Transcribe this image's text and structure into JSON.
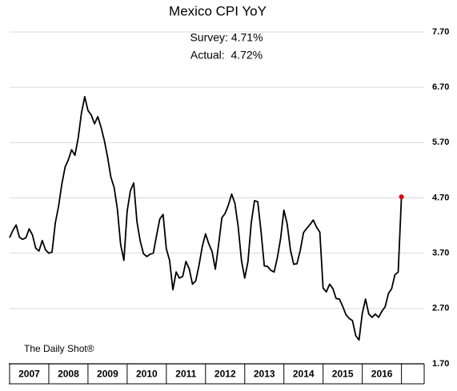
{
  "chart_data": {
    "type": "line",
    "title": "Mexico CPI YoY",
    "annotations": [
      "Survey: 4.71%",
      "Actual:  4.72%"
    ],
    "source": "The Daily Shot®",
    "color": "#000000",
    "marker_color": "#e00000",
    "grid": true,
    "ylim": [
      1.7,
      7.7
    ],
    "yticks": [
      {
        "value": 1.7,
        "label": "1.70"
      },
      {
        "value": 2.7,
        "label": "2.70"
      },
      {
        "value": 3.7,
        "label": "3.70"
      },
      {
        "value": 4.7,
        "label": "4.70"
      },
      {
        "value": 5.7,
        "label": "5.70"
      },
      {
        "value": 6.7,
        "label": "6.70"
      },
      {
        "value": 7.7,
        "label": "7.70"
      }
    ],
    "xlim": [
      2007,
      2017.58
    ],
    "xticks": [
      2007,
      2008,
      2009,
      2010,
      2011,
      2012,
      2013,
      2014,
      2015,
      2016,
      2017
    ],
    "categories": [
      "2007",
      "2008",
      "2009",
      "2010",
      "2011",
      "2012",
      "2013",
      "2014",
      "2015",
      "2016"
    ],
    "x": [
      2007,
      2007.083,
      2007.167,
      2007.25,
      2007.333,
      2007.417,
      2007.5,
      2007.583,
      2007.667,
      2007.75,
      2007.833,
      2007.917,
      2008,
      2008.083,
      2008.167,
      2008.25,
      2008.333,
      2008.417,
      2008.5,
      2008.583,
      2008.667,
      2008.75,
      2008.833,
      2008.917,
      2009,
      2009.083,
      2009.167,
      2009.25,
      2009.333,
      2009.417,
      2009.5,
      2009.583,
      2009.667,
      2009.75,
      2009.833,
      2009.917,
      2010,
      2010.083,
      2010.167,
      2010.25,
      2010.333,
      2010.417,
      2010.5,
      2010.583,
      2010.667,
      2010.75,
      2010.833,
      2010.917,
      2011,
      2011.083,
      2011.167,
      2011.25,
      2011.333,
      2011.417,
      2011.5,
      2011.583,
      2011.667,
      2011.75,
      2011.833,
      2011.917,
      2012,
      2012.083,
      2012.167,
      2012.25,
      2012.333,
      2012.417,
      2012.5,
      2012.583,
      2012.667,
      2012.75,
      2012.833,
      2012.917,
      2013,
      2013.083,
      2013.167,
      2013.25,
      2013.333,
      2013.417,
      2013.5,
      2013.583,
      2013.667,
      2013.75,
      2013.833,
      2013.917,
      2014,
      2014.083,
      2014.167,
      2014.25,
      2014.333,
      2014.417,
      2014.5,
      2014.583,
      2014.667,
      2014.75,
      2014.833,
      2014.917,
      2015,
      2015.083,
      2015.167,
      2015.25,
      2015.333,
      2015.417,
      2015.5,
      2015.583,
      2015.667,
      2015.75,
      2015.833,
      2015.917,
      2016,
      2016.083,
      2016.167,
      2016.25,
      2016.333,
      2016.417,
      2016.5,
      2016.583,
      2016.667,
      2016.75,
      2016.833,
      2016.917,
      2017
    ],
    "values": [
      3.98,
      4.11,
      4.21,
      3.99,
      3.95,
      3.98,
      4.14,
      4.03,
      3.79,
      3.74,
      3.93,
      3.76,
      3.7,
      3.72,
      4.25,
      4.55,
      4.95,
      5.26,
      5.39,
      5.57,
      5.47,
      5.78,
      6.23,
      6.53,
      6.28,
      6.2,
      6.04,
      6.17,
      5.98,
      5.74,
      5.44,
      5.08,
      4.89,
      4.5,
      3.86,
      3.57,
      4.46,
      4.83,
      4.97,
      4.27,
      3.92,
      3.69,
      3.64,
      3.68,
      3.7,
      4.02,
      4.32,
      4.4,
      3.78,
      3.57,
      3.04,
      3.36,
      3.25,
      3.28,
      3.55,
      3.42,
      3.14,
      3.2,
      3.48,
      3.82,
      4.05,
      3.87,
      3.73,
      3.41,
      3.85,
      4.34,
      4.42,
      4.57,
      4.77,
      4.6,
      4.18,
      3.57,
      3.25,
      3.55,
      4.25,
      4.65,
      4.63,
      4.09,
      3.47,
      3.46,
      3.39,
      3.36,
      3.62,
      3.97,
      4.48,
      4.23,
      3.76,
      3.5,
      3.51,
      3.75,
      4.07,
      4.15,
      4.22,
      4.3,
      4.17,
      4.08,
      3.07,
      3.0,
      3.14,
      3.06,
      2.88,
      2.87,
      2.74,
      2.59,
      2.52,
      2.48,
      2.21,
      2.13,
      2.61,
      2.87,
      2.6,
      2.54,
      2.6,
      2.54,
      2.65,
      2.73,
      2.97,
      3.06,
      3.31,
      3.36,
      4.72
    ]
  }
}
